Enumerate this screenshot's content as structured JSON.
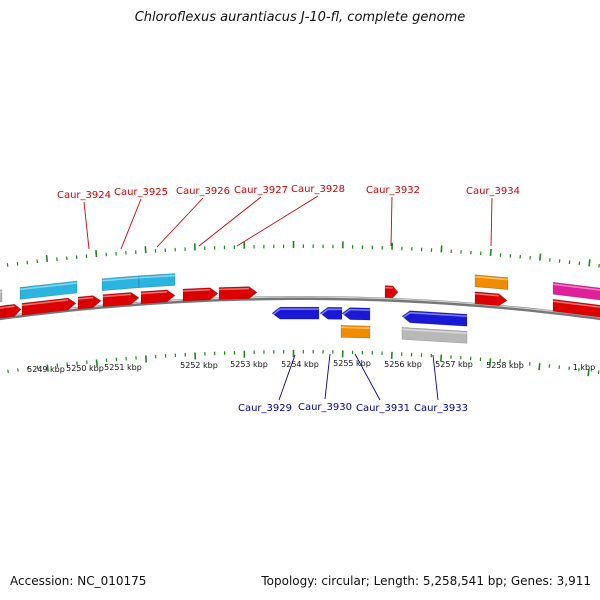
{
  "title": "Chloroflexus aurantiacus J-10-fl, complete genome",
  "footer": {
    "accession": "Accession: NC_010175",
    "summary": "Topology: circular; Length: 5,258,541 bp; Genes: 3,911"
  },
  "colors": {
    "cds_forward": "#dd0000",
    "cds_reverse": "#1a1ad6",
    "rna": "#2ab4e0",
    "orange": "#f08c00",
    "magenta": "#e0209a",
    "grey": "#b8b8b8",
    "backbone": "#777777",
    "ticks": "#1a8a1a",
    "label_forward": "#d40000",
    "label_reverse": "#0000aa"
  },
  "tick_labels": [
    {
      "text": "5249 kbp",
      "pos_kbp": 5249
    },
    {
      "text": "5250 kbp",
      "pos_kbp": 5250
    },
    {
      "text": "5251 kbp",
      "pos_kbp": 5251
    },
    {
      "text": "5252 kbp",
      "pos_kbp": 5252
    },
    {
      "text": "5253 kbp",
      "pos_kbp": 5253
    },
    {
      "text": "5254 kbp",
      "pos_kbp": 5254
    },
    {
      "text": "5255 kbp",
      "pos_kbp": 5255
    },
    {
      "text": "5256 kbp",
      "pos_kbp": 5256
    },
    {
      "text": "5257 kbp",
      "pos_kbp": 5257
    },
    {
      "text": "5258 kbp",
      "pos_kbp": 5258
    },
    {
      "text": "1 kbp",
      "pos_kbp": 5259.5
    }
  ],
  "gene_labels_top": [
    "Caur_3924",
    "Caur_3925",
    "Caur_3926",
    "Caur_3927",
    "Caur_3928",
    "Caur_3932",
    "Caur_3934"
  ],
  "gene_labels_bottom": [
    "Caur_3929",
    "Caur_3930",
    "Caur_3931",
    "Caur_3933"
  ]
}
